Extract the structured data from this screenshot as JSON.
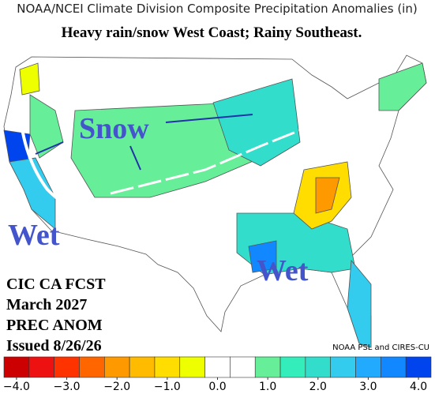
{
  "header": {
    "title": "NOAA/NCEI Climate Division Composite Precipitation Anomalies (in)",
    "subtitle": "Heavy rain/snow West Coast; Rainy Southeast."
  },
  "annotations": [
    "Snow",
    "Wet",
    "Wet"
  ],
  "info": [
    "CIC CA FCST",
    "March 2027",
    "PREC ANOM",
    "Issued 8/26/26"
  ],
  "credit": "NOAA PSL and CIRES-CU",
  "colorbar": {
    "range": [
      -4.25,
      4.25
    ],
    "colors": [
      "#cc0000",
      "#ee1111",
      "#ff3300",
      "#ff6600",
      "#ff9900",
      "#ffbb00",
      "#ffdd00",
      "#eeff00",
      "#ffffff",
      "#ffffff",
      "#66ee99",
      "#33eebb",
      "#33ddcc",
      "#33ccee",
      "#22aaff",
      "#1188ff",
      "#0044ee"
    ],
    "ticks": [
      {
        "value": -4,
        "label": "−4.0"
      },
      {
        "value": -3,
        "label": "−3.0"
      },
      {
        "value": -2,
        "label": "−2.0"
      },
      {
        "value": -1,
        "label": "−1.0"
      },
      {
        "value": 0,
        "label": "0.0"
      },
      {
        "value": 1,
        "label": "1.0"
      },
      {
        "value": 2,
        "label": "2.0"
      },
      {
        "value": 3,
        "label": "3.0"
      },
      {
        "value": 4,
        "label": "4.0"
      }
    ]
  }
}
